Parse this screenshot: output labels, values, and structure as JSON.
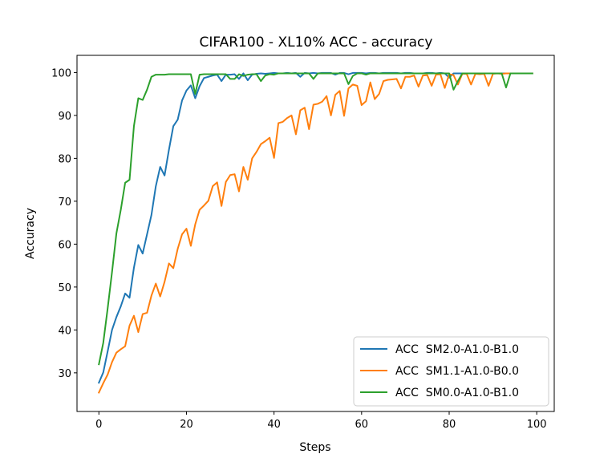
{
  "chart_data": {
    "type": "line",
    "title": "CIFAR100 - XL10% ACC - accuracy",
    "xlabel": "Steps",
    "ylabel": "Accuracy",
    "xlim": [
      -5,
      104
    ],
    "ylim": [
      21,
      104
    ],
    "xticks": [
      0,
      20,
      40,
      60,
      80,
      100
    ],
    "yticks": [
      30,
      40,
      50,
      60,
      70,
      80,
      90,
      100
    ],
    "grid": false,
    "legend_position": "lower-right",
    "series": [
      {
        "name": "ACC  SM2.0-A1.0-B1.0",
        "color": "#1f77b4",
        "x": [
          0,
          1,
          2,
          3,
          4,
          5,
          6,
          7,
          8,
          9,
          10,
          11,
          12,
          13,
          14,
          15,
          16,
          17,
          18,
          19,
          20,
          21,
          22,
          23,
          24,
          25,
          26,
          27,
          28,
          29,
          30,
          31,
          32,
          33,
          34,
          35,
          36,
          37,
          38,
          39,
          40,
          41,
          42,
          43,
          44,
          45,
          46,
          47,
          48,
          49,
          50,
          51,
          52,
          53,
          54,
          55,
          56,
          57,
          58,
          59,
          60,
          61,
          62,
          63,
          64,
          65,
          66,
          67,
          68,
          69,
          70,
          71,
          72,
          73,
          74,
          75,
          76,
          77,
          78,
          79,
          80,
          81,
          82,
          83,
          84,
          85,
          86,
          87,
          88,
          89,
          90,
          91,
          92,
          93,
          94,
          95,
          96,
          97,
          98,
          99
        ],
        "values": [
          27.7,
          30.1,
          35.0,
          40.0,
          43.0,
          45.5,
          48.5,
          47.5,
          54.5,
          59.8,
          57.8,
          62.3,
          66.8,
          73.5,
          78.0,
          76.0,
          82.0,
          87.5,
          89.0,
          93.5,
          95.8,
          97.0,
          94.0,
          96.8,
          98.7,
          99.0,
          99.3,
          99.5,
          98.0,
          99.5,
          99.5,
          99.6,
          98.5,
          99.8,
          98.2,
          99.5,
          99.7,
          99.8,
          99.7,
          99.8,
          99.9,
          99.8,
          99.8,
          99.9,
          99.8,
          99.9,
          99.0,
          99.9,
          99.8,
          99.9,
          99.8,
          99.9,
          99.9,
          99.9,
          99.5,
          99.9,
          99.9,
          99.6,
          99.9,
          99.9,
          99.9,
          99.8,
          99.9,
          99.9,
          99.8,
          99.9,
          99.9,
          99.9,
          99.9,
          99.8,
          99.9,
          99.9,
          99.8,
          99.8,
          99.8,
          99.9,
          99.9,
          99.8,
          99.9,
          99.8,
          98.8,
          99.8,
          99.8,
          99.8,
          99.8,
          99.8,
          99.8,
          99.8,
          99.8,
          99.8,
          99.8,
          99.8,
          99.8,
          99.8,
          99.8,
          99.8,
          99.8,
          99.8,
          99.8,
          99.8
        ]
      },
      {
        "name": "ACC  SM1.1-A1.0-B0.0",
        "color": "#ff7f0e",
        "x": [
          0,
          1,
          2,
          3,
          4,
          5,
          6,
          7,
          8,
          9,
          10,
          11,
          12,
          13,
          14,
          15,
          16,
          17,
          18,
          19,
          20,
          21,
          22,
          23,
          24,
          25,
          26,
          27,
          28,
          29,
          30,
          31,
          32,
          33,
          34,
          35,
          36,
          37,
          38,
          39,
          40,
          41,
          42,
          43,
          44,
          45,
          46,
          47,
          48,
          49,
          50,
          51,
          52,
          53,
          54,
          55,
          56,
          57,
          58,
          59,
          60,
          61,
          62,
          63,
          64,
          65,
          66,
          67,
          68,
          69,
          70,
          71,
          72,
          73,
          74,
          75,
          76,
          77,
          78,
          79,
          80,
          81,
          82,
          83,
          84,
          85,
          86,
          87,
          88,
          89,
          90,
          91,
          92,
          93,
          94,
          95,
          96,
          97,
          98,
          99
        ],
        "values": [
          25.4,
          27.6,
          29.6,
          32.5,
          34.7,
          35.5,
          36.2,
          41.0,
          43.3,
          39.5,
          43.7,
          44.0,
          48.0,
          50.8,
          47.8,
          51.2,
          55.5,
          54.4,
          58.9,
          62.3,
          63.6,
          59.6,
          64.6,
          68.0,
          69.0,
          70.1,
          73.5,
          74.4,
          68.9,
          74.5,
          76.1,
          76.3,
          72.3,
          78.0,
          75.0,
          80.0,
          81.5,
          83.3,
          84.0,
          84.8,
          80.1,
          88.2,
          88.5,
          89.4,
          90.0,
          85.6,
          91.2,
          91.8,
          86.8,
          92.5,
          92.7,
          93.2,
          94.5,
          90.0,
          94.8,
          95.7,
          89.9,
          96.3,
          97.2,
          96.9,
          92.4,
          93.3,
          97.7,
          93.8,
          95.0,
          98.0,
          98.3,
          98.4,
          98.5,
          96.3,
          99.0,
          99.0,
          99.3,
          96.7,
          99.3,
          99.4,
          96.9,
          99.5,
          99.6,
          96.4,
          99.6,
          99.4,
          97.2,
          99.7,
          99.7,
          97.2,
          99.7,
          99.6,
          99.7,
          96.9,
          99.7,
          99.8,
          99.7,
          99.8,
          99.8,
          99.8,
          99.8,
          99.8,
          99.8,
          99.8
        ]
      },
      {
        "name": "ACC  SM0.0-A1.0-B1.0",
        "color": "#2ca02c",
        "x": [
          0,
          1,
          2,
          3,
          4,
          5,
          6,
          7,
          8,
          9,
          10,
          11,
          12,
          13,
          14,
          15,
          16,
          17,
          18,
          19,
          20,
          21,
          22,
          23,
          24,
          25,
          26,
          27,
          28,
          29,
          30,
          31,
          32,
          33,
          34,
          35,
          36,
          37,
          38,
          39,
          40,
          41,
          42,
          43,
          44,
          45,
          46,
          47,
          48,
          49,
          50,
          51,
          52,
          53,
          54,
          55,
          56,
          57,
          58,
          59,
          60,
          61,
          62,
          63,
          64,
          65,
          66,
          67,
          68,
          69,
          70,
          71,
          72,
          73,
          74,
          75,
          76,
          77,
          78,
          79,
          80,
          81,
          82,
          83,
          84,
          85,
          86,
          87,
          88,
          89,
          90,
          91,
          92,
          93,
          94,
          95,
          96,
          97,
          98,
          99
        ],
        "values": [
          32.0,
          37.0,
          45.0,
          53.5,
          62.5,
          68.0,
          74.3,
          75.0,
          87.5,
          94.0,
          93.6,
          96.0,
          99.0,
          99.5,
          99.5,
          99.5,
          99.6,
          99.6,
          99.6,
          99.6,
          99.6,
          99.6,
          95.0,
          99.5,
          99.6,
          99.6,
          99.6,
          99.6,
          99.6,
          99.6,
          98.5,
          98.5,
          99.6,
          99.2,
          99.5,
          99.6,
          99.6,
          98.0,
          99.3,
          99.6,
          99.5,
          99.8,
          99.8,
          99.8,
          99.8,
          99.8,
          99.8,
          99.8,
          99.8,
          98.5,
          99.8,
          99.8,
          99.8,
          99.8,
          99.8,
          99.8,
          99.8,
          97.3,
          99.2,
          99.8,
          99.8,
          99.5,
          99.8,
          99.8,
          99.8,
          99.8,
          99.8,
          99.8,
          99.8,
          99.8,
          99.8,
          99.8,
          99.8,
          99.8,
          99.8,
          99.8,
          99.8,
          99.8,
          99.8,
          99.8,
          99.8,
          96.0,
          98.0,
          99.8,
          99.8,
          99.8,
          99.8,
          99.8,
          99.8,
          99.8,
          99.8,
          99.8,
          99.8,
          96.5,
          99.8,
          99.8,
          99.8,
          99.8,
          99.8,
          99.8
        ]
      }
    ]
  }
}
